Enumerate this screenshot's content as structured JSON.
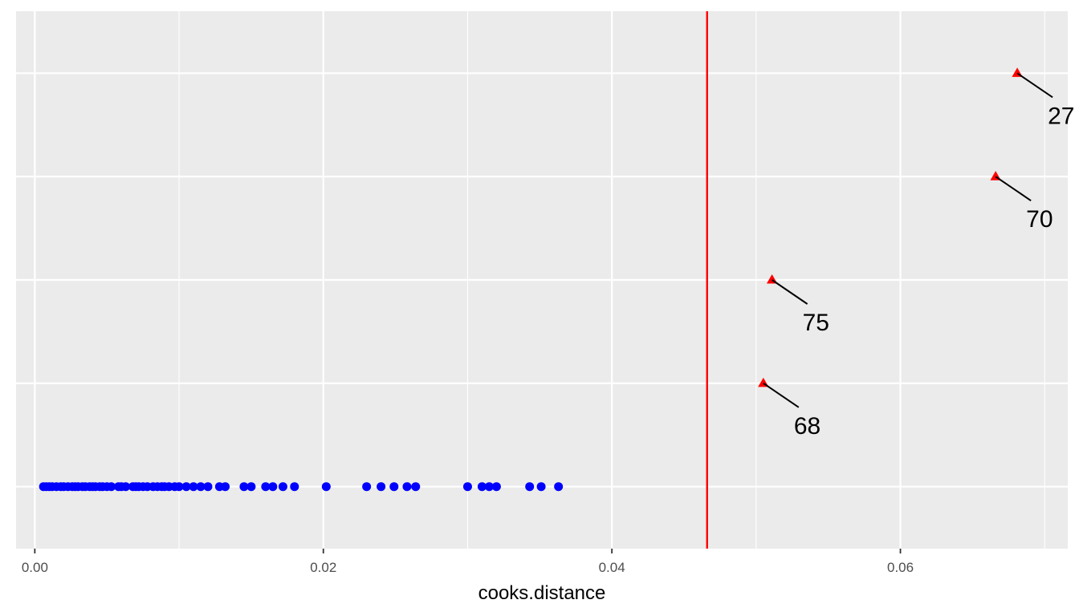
{
  "chart_data": {
    "type": "scatter",
    "xlabel": "cooks.distance",
    "ylabel": "",
    "xlim": [
      -0.0013,
      0.0716
    ],
    "ylim": [
      0.4,
      5.6
    ],
    "x_ticks": [
      0.0,
      0.02,
      0.04,
      0.06
    ],
    "x_tick_labels": [
      "0.00",
      "0.02",
      "0.04",
      "0.06"
    ],
    "y_gridlines": [
      1,
      2,
      3,
      4,
      5
    ],
    "grid": true,
    "background_color": "#ebebeb",
    "grid_color": "#ffffff",
    "threshold": {
      "x": 0.0466,
      "color": "#ff0000"
    },
    "series": [
      {
        "marker": "circle",
        "color": "#0000ff",
        "y": 1,
        "x": [
          0.0006,
          0.0008,
          0.001,
          0.0012,
          0.0015,
          0.0018,
          0.002,
          0.0023,
          0.0026,
          0.0028,
          0.003,
          0.0033,
          0.0035,
          0.0038,
          0.004,
          0.0042,
          0.0045,
          0.0047,
          0.005,
          0.0053,
          0.0058,
          0.006,
          0.0063,
          0.0068,
          0.007,
          0.0072,
          0.0075,
          0.0078,
          0.0082,
          0.0085,
          0.0088,
          0.009,
          0.0093,
          0.0097,
          0.01,
          0.0105,
          0.011,
          0.0115,
          0.012,
          0.0128,
          0.0132,
          0.0145,
          0.015,
          0.016,
          0.0165,
          0.0172,
          0.018,
          0.0202,
          0.023,
          0.024,
          0.0249,
          0.0258,
          0.0264,
          0.03,
          0.031,
          0.0315,
          0.032,
          0.0343,
          0.0351,
          0.0363
        ]
      },
      {
        "marker": "triangle",
        "color": "#ff0000",
        "points": [
          {
            "x": 0.0505,
            "y": 2,
            "label": "68"
          },
          {
            "x": 0.0511,
            "y": 3,
            "label": "75"
          },
          {
            "x": 0.0666,
            "y": 4,
            "label": "70"
          },
          {
            "x": 0.0681,
            "y": 5,
            "label": "27"
          }
        ]
      }
    ]
  }
}
